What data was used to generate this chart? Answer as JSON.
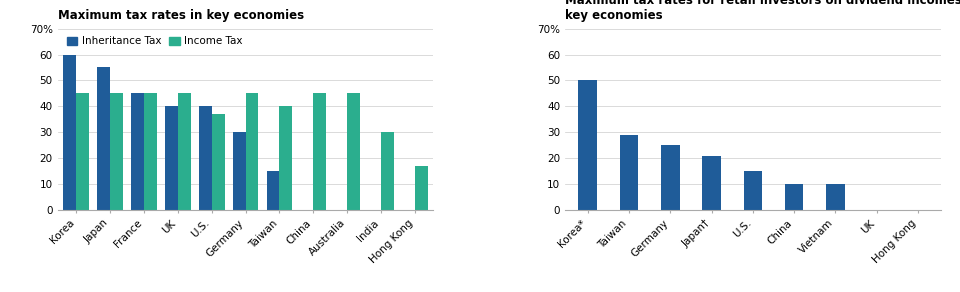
{
  "chart1": {
    "title": "Maximum tax rates in key economies",
    "categories": [
      "Korea",
      "Japan",
      "France",
      "UK",
      "U.S.",
      "Germany",
      "Taiwan",
      "China",
      "Australia",
      "India",
      "Hong Kong"
    ],
    "inheritance_tax": [
      60,
      55,
      45,
      40,
      40,
      30,
      15,
      0,
      0,
      0,
      0
    ],
    "income_tax": [
      45,
      45,
      45,
      45,
      37,
      45,
      40,
      45,
      45,
      30,
      17
    ],
    "bar_color_inheritance": "#1F5C99",
    "bar_color_income": "#2BAE8E",
    "yticks": [
      0,
      10,
      20,
      30,
      40,
      50,
      60,
      70
    ],
    "yticklabels": [
      "0",
      "10",
      "20",
      "30",
      "40",
      "50",
      "60",
      "70%"
    ],
    "ylim": [
      0,
      72
    ]
  },
  "chart2": {
    "title": "Maximum tax rates for retail investors on dividend incomes in\nkey economies",
    "categories": [
      "Korea*",
      "Taiwan",
      "Germany",
      "Japan†",
      "U.S.",
      "China",
      "Vietnam",
      "UK",
      "Hong Kong"
    ],
    "values": [
      50,
      29,
      25,
      21,
      15,
      10,
      10,
      0,
      0
    ],
    "bar_color": "#1F5C99",
    "yticks": [
      0,
      10,
      20,
      30,
      40,
      50,
      60,
      70
    ],
    "yticklabels": [
      "0",
      "10",
      "20",
      "30",
      "40",
      "50",
      "60",
      "70%"
    ],
    "ylim": [
      0,
      72
    ]
  },
  "background_color": "#FFFFFF",
  "legend_labels": [
    "Inheritance Tax",
    "Income Tax"
  ],
  "legend_colors": [
    "#1F5C99",
    "#2BAE8E"
  ],
  "title_fontsize": 8.5,
  "tick_fontsize": 7.5
}
